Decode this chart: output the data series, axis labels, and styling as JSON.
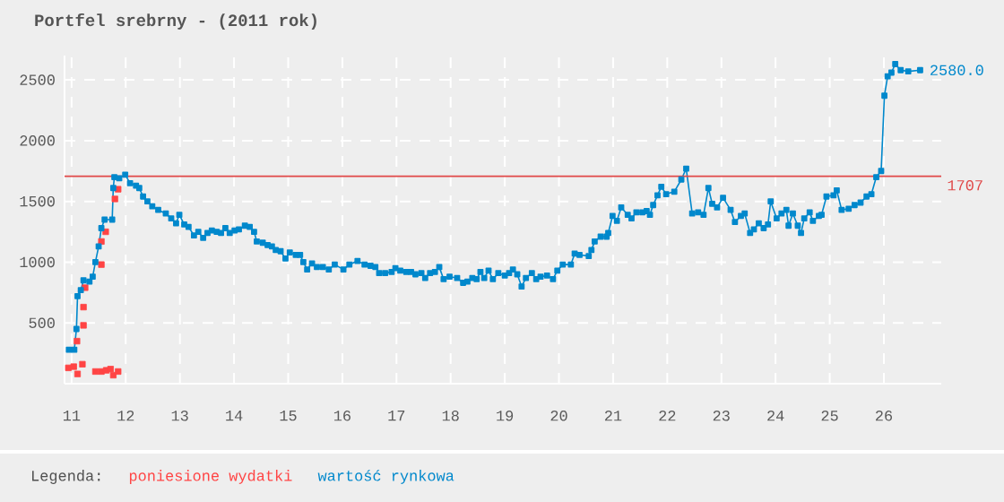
{
  "chart_data": {
    "type": "line",
    "title": "Portfel srebrny - (2011 rok)",
    "legend_title": "Legenda:",
    "legend": "bottom",
    "grid": true,
    "marker": "square",
    "line_style": "solid",
    "xlim": [
      10.87,
      27.06
    ],
    "xticks": [
      11,
      12,
      13,
      14,
      15,
      16,
      17,
      18,
      19,
      20,
      21,
      22,
      23,
      24,
      25,
      26
    ],
    "ylim": [
      0,
      2700
    ],
    "yticks": [
      {
        "value": 0,
        "label": null
      },
      500,
      1000,
      1500,
      2000,
      2500
    ],
    "series": [
      {
        "name": "poniesione wydatki",
        "type": "scatter",
        "color": "#ff4444",
        "x": [
          10.94,
          11.04,
          11.1,
          11.11,
          11.2,
          11.22,
          11.22,
          11.25,
          11.44,
          11.55,
          11.55,
          11.55,
          11.63,
          11.64,
          11.72,
          11.77,
          11.8,
          11.86,
          11.86
        ],
        "values": [
          130,
          140,
          350,
          80,
          160,
          480,
          630,
          790,
          100,
          100,
          980,
          1170,
          1250,
          110,
          120,
          70,
          1520,
          100,
          1600
        ]
      },
      {
        "name": "wartość rynkowa",
        "color": "#0088cc",
        "x": [
          10.95,
          11.05,
          11.09,
          11.11,
          11.17,
          11.22,
          11.33,
          11.39,
          11.44,
          11.5,
          11.55,
          11.61,
          11.75,
          11.77,
          11.79,
          11.88,
          11.99,
          12.08,
          12.19,
          12.25,
          12.32,
          12.4,
          12.49,
          12.6,
          12.74,
          12.84,
          12.93,
          12.99,
          13.08,
          13.16,
          13.26,
          13.34,
          13.43,
          13.51,
          13.59,
          13.68,
          13.76,
          13.84,
          13.92,
          14.01,
          14.09,
          14.2,
          14.29,
          14.37,
          14.42,
          14.53,
          14.62,
          14.7,
          14.77,
          14.86,
          14.95,
          15.03,
          15.14,
          15.22,
          15.28,
          15.35,
          15.44,
          15.53,
          15.64,
          15.75,
          15.86,
          16.02,
          16.13,
          16.28,
          16.41,
          16.52,
          16.61,
          16.68,
          16.79,
          16.91,
          16.98,
          17.07,
          17.18,
          17.27,
          17.35,
          17.46,
          17.53,
          17.62,
          17.71,
          17.79,
          17.87,
          17.98,
          18.12,
          18.23,
          18.31,
          18.4,
          18.48,
          18.55,
          18.62,
          18.7,
          18.78,
          18.88,
          19.0,
          19.08,
          19.15,
          19.23,
          19.31,
          19.39,
          19.5,
          19.58,
          19.66,
          19.78,
          19.89,
          19.97,
          20.07,
          20.22,
          20.29,
          20.38,
          20.55,
          20.6,
          20.66,
          20.77,
          20.88,
          20.91,
          20.99,
          21.07,
          21.15,
          21.27,
          21.34,
          21.43,
          21.54,
          21.62,
          21.68,
          21.74,
          21.82,
          21.89,
          21.98,
          22.13,
          22.26,
          22.35,
          22.46,
          22.57,
          22.67,
          22.76,
          22.83,
          22.92,
          23.03,
          23.17,
          23.25,
          23.36,
          23.43,
          23.53,
          23.6,
          23.69,
          23.78,
          23.86,
          23.91,
          24.02,
          24.11,
          24.2,
          24.24,
          24.32,
          24.41,
          24.47,
          24.53,
          24.63,
          24.69,
          24.8,
          24.85,
          24.94,
          25.07,
          25.13,
          25.22,
          25.35,
          25.46,
          25.57,
          25.68,
          25.77,
          25.86,
          25.95,
          26.01,
          26.07,
          26.14,
          26.21,
          26.31,
          26.45,
          26.67
        ],
        "values": [
          280,
          280,
          450,
          720,
          770,
          850,
          840,
          880,
          1000,
          1130,
          1280,
          1350,
          1350,
          1610,
          1700,
          1690,
          1720,
          1650,
          1630,
          1610,
          1540,
          1500,
          1460,
          1430,
          1400,
          1360,
          1320,
          1390,
          1310,
          1290,
          1220,
          1250,
          1200,
          1240,
          1260,
          1250,
          1240,
          1280,
          1240,
          1260,
          1270,
          1300,
          1290,
          1250,
          1170,
          1160,
          1140,
          1130,
          1100,
          1090,
          1030,
          1080,
          1060,
          1060,
          1000,
          940,
          990,
          960,
          960,
          940,
          980,
          940,
          980,
          1010,
          980,
          970,
          960,
          910,
          910,
          920,
          950,
          930,
          920,
          920,
          900,
          910,
          870,
          910,
          920,
          960,
          860,
          880,
          870,
          830,
          840,
          870,
          860,
          920,
          870,
          930,
          860,
          910,
          890,
          910,
          940,
          900,
          800,
          870,
          910,
          860,
          880,
          890,
          860,
          930,
          980,
          980,
          1070,
          1060,
          1050,
          1100,
          1170,
          1210,
          1210,
          1240,
          1380,
          1340,
          1450,
          1390,
          1360,
          1410,
          1410,
          1420,
          1390,
          1470,
          1550,
          1620,
          1560,
          1580,
          1680,
          1770,
          1400,
          1410,
          1390,
          1610,
          1480,
          1450,
          1530,
          1430,
          1330,
          1380,
          1400,
          1240,
          1270,
          1320,
          1280,
          1310,
          1500,
          1360,
          1400,
          1430,
          1300,
          1400,
          1300,
          1240,
          1360,
          1410,
          1340,
          1380,
          1390,
          1540,
          1550,
          1590,
          1430,
          1440,
          1470,
          1490,
          1540,
          1560,
          1700,
          1750,
          2370,
          2530,
          2560,
          2630,
          2580,
          2570,
          2580
        ]
      }
    ],
    "ref_lines": [
      {
        "axis": "y",
        "value": 1707,
        "label": "1707",
        "color": "#e04848"
      }
    ],
    "annotations": [
      {
        "text": "2580.0",
        "x": 26.67,
        "y": 2580
      }
    ]
  }
}
